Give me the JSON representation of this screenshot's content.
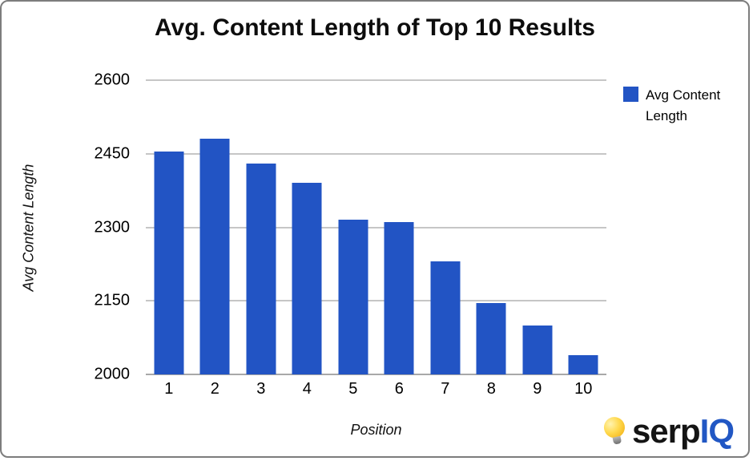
{
  "chart_data": {
    "type": "bar",
    "title": "Avg. Content Length of Top 10 Results",
    "categories": [
      "1",
      "2",
      "3",
      "4",
      "5",
      "6",
      "7",
      "8",
      "9",
      "10"
    ],
    "values": [
      2455,
      2480,
      2430,
      2390,
      2315,
      2310,
      2230,
      2145,
      2100,
      2040
    ],
    "xlabel": "Position",
    "ylabel": "Avg Content Length",
    "ylim": [
      2000,
      2600
    ],
    "yticks": [
      2000,
      2150,
      2300,
      2450,
      2600
    ],
    "bar_color": "#2254c4",
    "grid": true,
    "legend_position": "top-right",
    "legend": [
      {
        "label": "Avg Content Length",
        "color": "#2254c4"
      }
    ]
  },
  "branding": {
    "logo_serp": "serp",
    "logo_iq": "IQ"
  }
}
